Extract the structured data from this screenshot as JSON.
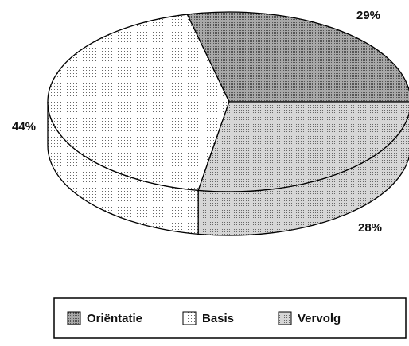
{
  "chart_data": {
    "type": "pie",
    "categories": [
      "Oriëntatie",
      "Basis",
      "Vervolg"
    ],
    "values": [
      29,
      44,
      28
    ],
    "value_labels": [
      "29%",
      "44%",
      "28%"
    ],
    "colors": [
      "#a8a8a8",
      "#ffffff",
      "#d6d6d6"
    ],
    "legend": "bottom"
  }
}
